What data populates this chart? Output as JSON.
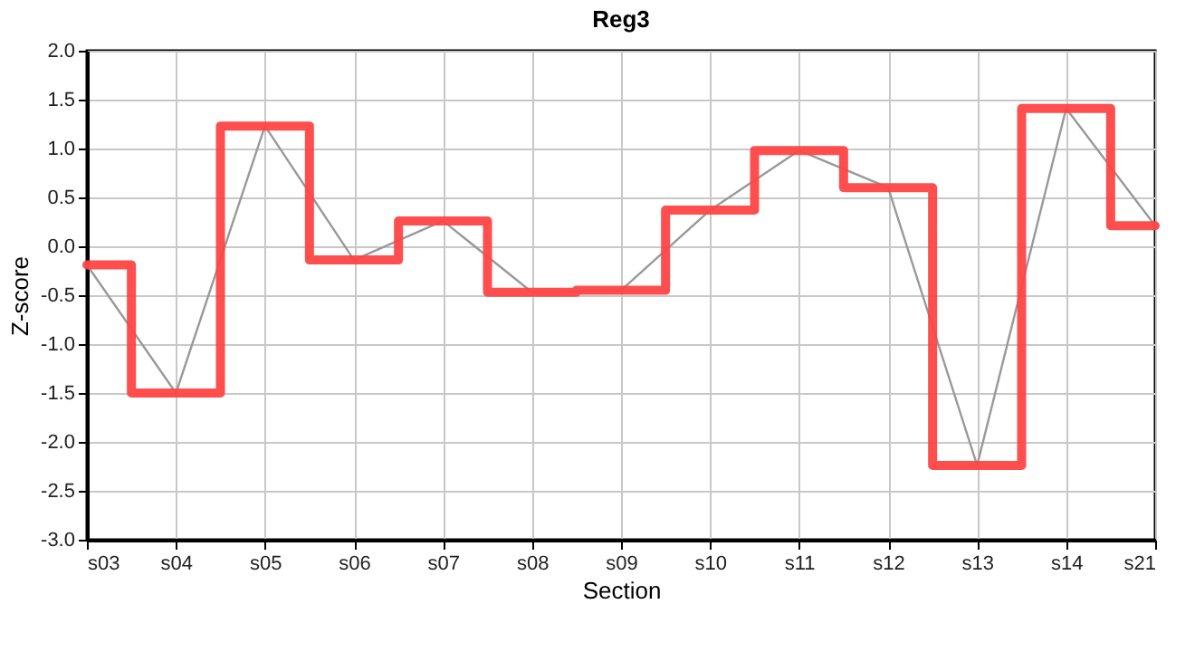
{
  "chart_data": {
    "type": "step",
    "title": "Reg3",
    "xlabel": "Section",
    "ylabel": "Z-score",
    "categories": [
      "s03",
      "s04",
      "s05",
      "s06",
      "s07",
      "s08",
      "s09",
      "s10",
      "s11",
      "s12",
      "s13",
      "s14",
      "s21"
    ],
    "series": [
      {
        "type": "line",
        "color": "#999999",
        "values": [
          -0.19,
          -1.5,
          1.23,
          -0.14,
          0.26,
          -0.47,
          -0.45,
          0.37,
          0.98,
          0.6,
          -2.24,
          1.41,
          0.21
        ]
      },
      {
        "color": "#ff4444",
        "values": [
          -0.19,
          -1.5,
          1.23,
          -0.14,
          0.26,
          -0.47,
          -0.45,
          0.37,
          0.98,
          0.6,
          -2.24,
          1.41,
          0.21
        ]
      }
    ],
    "ylim": [
      -3.0,
      2.0
    ],
    "yticks": [
      {
        "value": -3.0,
        "label": "-3.0"
      },
      {
        "value": -2.5,
        "label": "-2.5"
      },
      {
        "value": -2.0,
        "label": "-2.0"
      },
      {
        "value": -1.5,
        "label": "-1.5"
      },
      {
        "value": -1.0,
        "label": "-1.0"
      },
      {
        "value": -0.5,
        "label": "-0.5"
      },
      {
        "value": 0.0,
        "label": "0.0"
      },
      {
        "value": 0.5,
        "label": "0.5"
      },
      {
        "value": 1.0,
        "label": "1.0"
      },
      {
        "value": 1.5,
        "label": "1.5"
      },
      {
        "value": 2.0,
        "label": "2.0"
      }
    ],
    "grid": true
  }
}
